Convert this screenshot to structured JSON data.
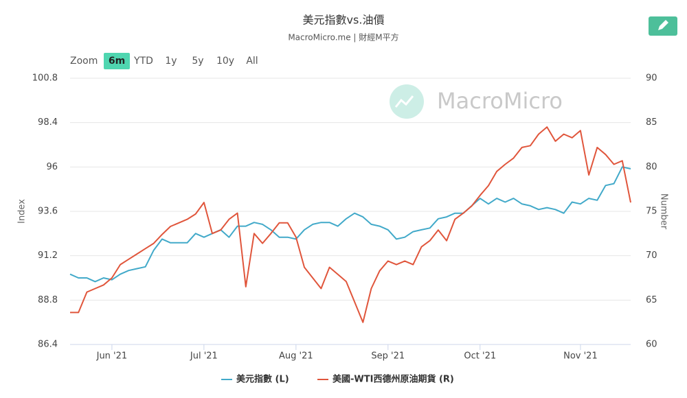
{
  "chart_data": {
    "type": "line",
    "title": "美元指數vs.油價",
    "subtitle": "MacroMicro.me | 財經M平方",
    "watermark": "MacroMicro",
    "range_selector": {
      "label": "Zoom",
      "buttons": [
        "6m",
        "YTD",
        "1y",
        "5y",
        "10y",
        "All"
      ],
      "active": 0
    },
    "y_label": "Index",
    "y2_label": "Number",
    "categories": [
      null,
      null,
      null,
      null,
      null,
      "Jun '21",
      null,
      null,
      null,
      null,
      null,
      null,
      null,
      null,
      null,
      null,
      "Jul '21",
      null,
      null,
      null,
      null,
      null,
      null,
      null,
      null,
      null,
      null,
      "Aug '21",
      null,
      null,
      null,
      null,
      null,
      null,
      null,
      null,
      null,
      null,
      "Sep '21",
      null,
      null,
      null,
      null,
      null,
      null,
      null,
      null,
      null,
      null,
      "Oct '21",
      null,
      null,
      null,
      null,
      null,
      null,
      null,
      null,
      null,
      null,
      null,
      "Nov '21",
      null,
      null,
      null,
      null,
      null,
      null
    ],
    "ylim": [
      86.4,
      100.8
    ],
    "yticks": [
      86.4,
      88.8,
      91.2,
      93.6,
      96,
      98.4,
      100.8
    ],
    "y2lim": [
      60,
      90
    ],
    "y2ticks": [
      60,
      65,
      70,
      75,
      80,
      85,
      90
    ],
    "grid": true,
    "legend": "bottom",
    "series": [
      {
        "name": "美元指數 (L)",
        "color": "#41a9c9",
        "axis": "y",
        "values": [
          90.2,
          90.0,
          90.0,
          89.8,
          90.0,
          89.9,
          90.2,
          90.4,
          90.5,
          90.6,
          91.5,
          92.1,
          91.9,
          91.9,
          91.9,
          92.4,
          92.2,
          92.4,
          92.6,
          92.2,
          92.8,
          92.8,
          93.0,
          92.9,
          92.6,
          92.2,
          92.2,
          92.1,
          92.6,
          92.9,
          93.0,
          93.0,
          92.8,
          93.2,
          93.5,
          93.3,
          92.9,
          92.8,
          92.6,
          92.1,
          92.2,
          92.5,
          92.6,
          92.7,
          93.2,
          93.3,
          93.5,
          93.5,
          93.9,
          94.3,
          94.0,
          94.3,
          94.1,
          94.3,
          94.0,
          93.9,
          93.7,
          93.8,
          93.7,
          93.5,
          94.1,
          94.0,
          94.3,
          94.2,
          95.0,
          95.1,
          96.0,
          95.9
        ]
      },
      {
        "name": "美國-WTI西德州原油期貨 (R)",
        "color": "#e0553b",
        "axis": "y2",
        "values": [
          63.6,
          63.6,
          65.9,
          66.3,
          66.7,
          67.5,
          69.0,
          69.6,
          70.2,
          70.8,
          71.4,
          72.4,
          73.3,
          73.7,
          74.1,
          74.7,
          76.0,
          72.5,
          72.9,
          74.1,
          74.8,
          66.5,
          72.5,
          71.4,
          72.5,
          73.7,
          73.7,
          72.1,
          68.7,
          67.5,
          66.3,
          68.7,
          67.9,
          67.1,
          64.8,
          62.5,
          66.3,
          68.3,
          69.4,
          69.0,
          69.4,
          69.0,
          71.0,
          71.7,
          72.9,
          71.7,
          74.1,
          74.8,
          75.6,
          76.8,
          77.9,
          79.5,
          80.3,
          81.0,
          82.2,
          82.4,
          83.7,
          84.5,
          82.9,
          83.7,
          83.3,
          84.1,
          79.1,
          82.2,
          81.4,
          80.3,
          80.7,
          76.0
        ]
      }
    ]
  }
}
